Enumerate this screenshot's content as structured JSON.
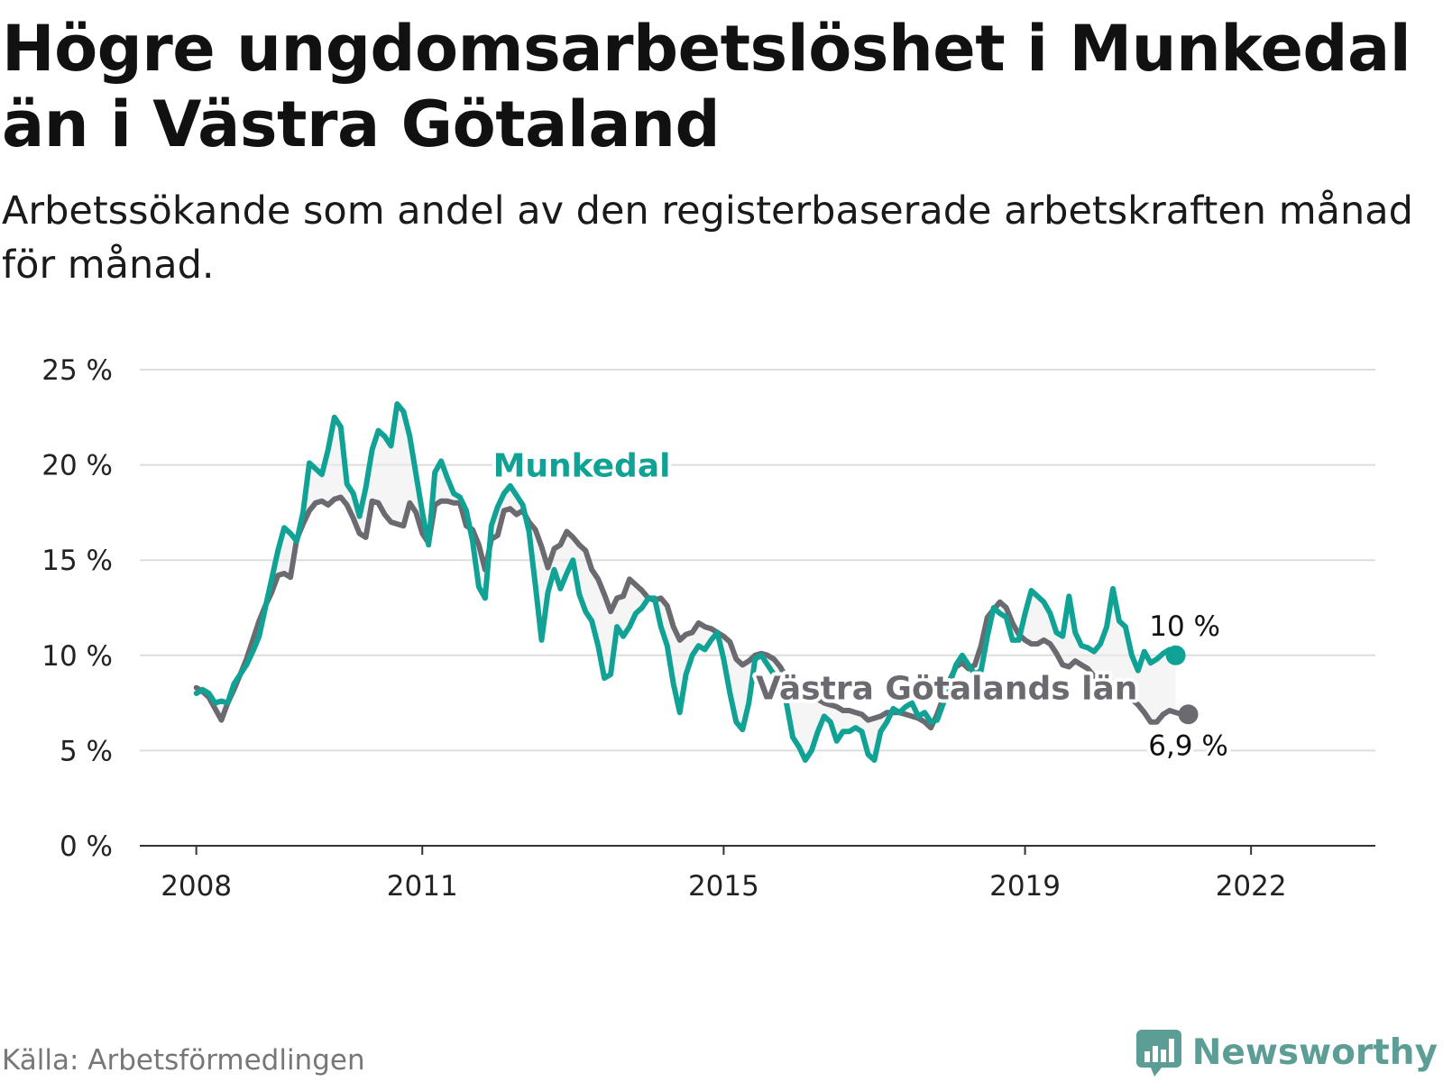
{
  "header": {
    "title": "Högre ungdomsarbetslöshet i Munkedal än i Västra Götaland",
    "subtitle": "Arbetssökande som andel av den registerbaserade arbetskraften månad för månad."
  },
  "footer": {
    "source": "Källa: Arbetsförmedlingen",
    "brand": "Newsworthy"
  },
  "colors": {
    "munkedal": "#10a295",
    "vastra": "#6b6a70",
    "grid": "#dddddd",
    "band": "#ececec"
  },
  "chart_data": {
    "type": "line",
    "title": "Högre ungdomsarbetslöshet i Munkedal än i Västra Götaland",
    "ylabel": "",
    "xlabel": "",
    "ylim": [
      0,
      25
    ],
    "yticks": [
      0,
      5,
      10,
      15,
      20,
      25
    ],
    "ytick_labels": [
      "0 %",
      "5 %",
      "10 %",
      "15 %",
      "20 %",
      "25 %"
    ],
    "xticks": [
      2008,
      2011,
      2015,
      2019,
      2022
    ],
    "xtick_labels": [
      "2008",
      "2011",
      "2015",
      "2019",
      "2022"
    ],
    "xlim": [
      2007.25,
      2023.65
    ],
    "x_start": 2008.0,
    "x_step": 0.0833333,
    "series": [
      {
        "name": "Munkedal",
        "label": "Munkedal",
        "end_label": "10 %",
        "values": [
          8.0,
          8.2,
          8.0,
          7.5,
          7.6,
          7.5,
          8.5,
          9.0,
          9.5,
          10.2,
          11.0,
          12.5,
          14.0,
          15.5,
          16.7,
          16.4,
          16.0,
          17.5,
          20.1,
          19.8,
          19.5,
          20.8,
          22.5,
          22.0,
          19.0,
          18.5,
          17.3,
          18.8,
          20.8,
          21.8,
          21.5,
          21.0,
          23.2,
          22.8,
          21.5,
          19.5,
          17.5,
          15.8,
          19.6,
          20.2,
          19.3,
          18.5,
          18.3,
          17.6,
          16.0,
          13.6,
          13.0,
          16.8,
          17.8,
          18.5,
          18.9,
          18.4,
          17.9,
          16.5,
          13.7,
          10.8,
          13.3,
          14.5,
          13.5,
          14.3,
          15.0,
          13.2,
          12.3,
          11.8,
          10.5,
          8.8,
          9.0,
          11.5,
          11.0,
          11.5,
          12.2,
          12.5,
          13.0,
          13.0,
          11.5,
          10.5,
          8.5,
          7.0,
          9.0,
          10.0,
          10.5,
          10.3,
          10.8,
          11.2,
          9.8,
          8.0,
          6.5,
          6.1,
          7.5,
          9.8,
          10.0,
          9.5,
          9.0,
          8.8,
          7.5,
          5.7,
          5.2,
          4.5,
          5.0,
          6.0,
          6.8,
          6.5,
          5.5,
          6.0,
          6.0,
          6.2,
          6.0,
          4.8,
          4.5,
          6.0,
          6.5,
          7.2,
          7.0,
          7.3,
          7.5,
          6.8,
          7.0,
          6.5,
          6.6,
          7.5,
          8.5,
          9.5,
          10.0,
          9.5,
          9.0,
          9.2,
          11.0,
          12.5,
          12.2,
          12.0,
          10.8,
          10.8,
          12.2,
          13.4,
          13.1,
          12.8,
          12.2,
          11.2,
          11.0,
          13.1,
          11.2,
          10.5,
          10.4,
          10.2,
          10.6,
          11.5,
          13.5,
          11.8,
          11.5,
          10.0,
          9.2,
          10.2,
          9.6,
          9.8,
          10.1,
          10.3,
          10.0
        ]
      },
      {
        "name": "Västra Götalands län",
        "label": "Västra Götalands län",
        "end_label": "6,9 %",
        "values": [
          8.3,
          8.1,
          7.8,
          7.2,
          6.6,
          7.5,
          8.2,
          9.0,
          9.8,
          10.8,
          11.8,
          12.6,
          13.3,
          14.2,
          14.3,
          14.1,
          16.1,
          16.9,
          17.6,
          18.0,
          18.1,
          17.9,
          18.2,
          18.3,
          17.9,
          17.2,
          16.4,
          16.2,
          18.1,
          18.0,
          17.4,
          17.0,
          16.9,
          16.8,
          18.0,
          17.5,
          16.4,
          15.9,
          17.9,
          18.1,
          18.1,
          18.0,
          18.0,
          16.8,
          16.6,
          15.8,
          14.5,
          16.1,
          16.3,
          17.6,
          17.7,
          17.4,
          17.6,
          17.0,
          16.6,
          15.7,
          14.6,
          15.6,
          15.8,
          16.5,
          16.2,
          15.8,
          15.5,
          14.5,
          14.0,
          13.2,
          12.3,
          13.0,
          13.1,
          14.0,
          13.7,
          13.4,
          13.0,
          12.9,
          13.0,
          12.6,
          11.5,
          10.8,
          11.1,
          11.2,
          11.7,
          11.5,
          11.4,
          11.2,
          11.0,
          10.7,
          9.8,
          9.5,
          9.7,
          10.0,
          10.1,
          10.0,
          9.8,
          9.4,
          8.8,
          8.3,
          8.1,
          7.9,
          7.7,
          7.7,
          7.5,
          7.4,
          7.3,
          7.1,
          7.1,
          7.0,
          6.9,
          6.6,
          6.7,
          6.8,
          7.0,
          7.0,
          7.0,
          6.9,
          6.8,
          6.7,
          6.5,
          6.2,
          6.9,
          7.8,
          8.7,
          9.4,
          9.6,
          9.3,
          9.5,
          10.5,
          12.0,
          12.4,
          12.8,
          12.5,
          11.7,
          11.1,
          10.8,
          10.6,
          10.6,
          10.8,
          10.6,
          10.1,
          9.5,
          9.4,
          9.7,
          9.5,
          9.3,
          8.9,
          8.4,
          8.0,
          7.8,
          7.7,
          7.9,
          7.7,
          7.4,
          7.0,
          6.5,
          6.5,
          6.9,
          7.1,
          7.0,
          6.9,
          6.9
        ]
      }
    ]
  }
}
